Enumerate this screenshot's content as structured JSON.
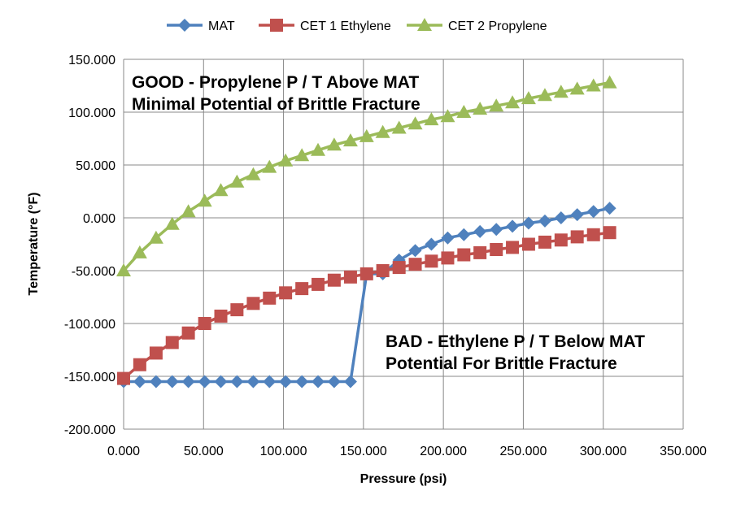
{
  "chart_data": {
    "type": "line",
    "title": "",
    "xlabel": "Pressure (psi)",
    "ylabel": "Temperature (°F)",
    "xlim": [
      0,
      350
    ],
    "ylim": [
      -200,
      150
    ],
    "xticks": [
      "0.000",
      "50.000",
      "100.000",
      "150.000",
      "200.000",
      "250.000",
      "300.000",
      "350.000"
    ],
    "yticks": [
      "150.000",
      "100.000",
      "50.000",
      "0.000",
      "-50.000",
      "-100.000",
      "-150.000",
      "-200.000"
    ],
    "grid": true,
    "legend_position": "top",
    "x": [
      0,
      10.1,
      20.3,
      30.4,
      40.5,
      50.7,
      60.8,
      70.9,
      81.1,
      91.2,
      101.3,
      111.5,
      121.6,
      131.7,
      141.9,
      152,
      162.1,
      172.3,
      182.4,
      192.5,
      202.7,
      212.8,
      222.9,
      233.1,
      243.2,
      253.3,
      263.5,
      273.6,
      283.7,
      293.9,
      304
    ],
    "series": [
      {
        "name": "MAT",
        "color": "#4F81BD",
        "marker": "diamond",
        "values": [
          -155,
          -155,
          -155,
          -155,
          -155,
          -155,
          -155,
          -155,
          -155,
          -155,
          -155,
          -155,
          -155,
          -155,
          -155,
          -53,
          -53,
          -40,
          -31,
          -25,
          -19,
          -16,
          -13,
          -11,
          -8,
          -5,
          -3,
          0,
          3,
          6,
          9
        ]
      },
      {
        "name": "CET 1 Ethylene",
        "color": "#C0504D",
        "marker": "square",
        "values": [
          -152,
          -139,
          -128,
          -118,
          -109,
          -100,
          -93,
          -87,
          -81,
          -76,
          -71,
          -67,
          -63,
          -59,
          -56,
          -53,
          -50,
          -47,
          -44,
          -41,
          -38,
          -35,
          -33,
          -30,
          -28,
          -25,
          -23,
          -21,
          -18,
          -16,
          -14
        ]
      },
      {
        "name": "CET 2 Propylene",
        "color": "#9BBB59",
        "marker": "triangle",
        "values": [
          -50,
          -33,
          -19,
          -6,
          6,
          16,
          26,
          34,
          41,
          48,
          54,
          59,
          64,
          69,
          73,
          77,
          81,
          85,
          89,
          93,
          96,
          100,
          103,
          106,
          109,
          113,
          116,
          119,
          122,
          125,
          128
        ]
      }
    ],
    "annotations": {
      "good_line1": "GOOD - Propylene P / T Above MAT",
      "good_line2": "Minimal Potential of Brittle Fracture",
      "bad_line1": "BAD - Ethylene P / T Below MAT",
      "bad_line2": "Potential For Brittle Fracture"
    }
  }
}
